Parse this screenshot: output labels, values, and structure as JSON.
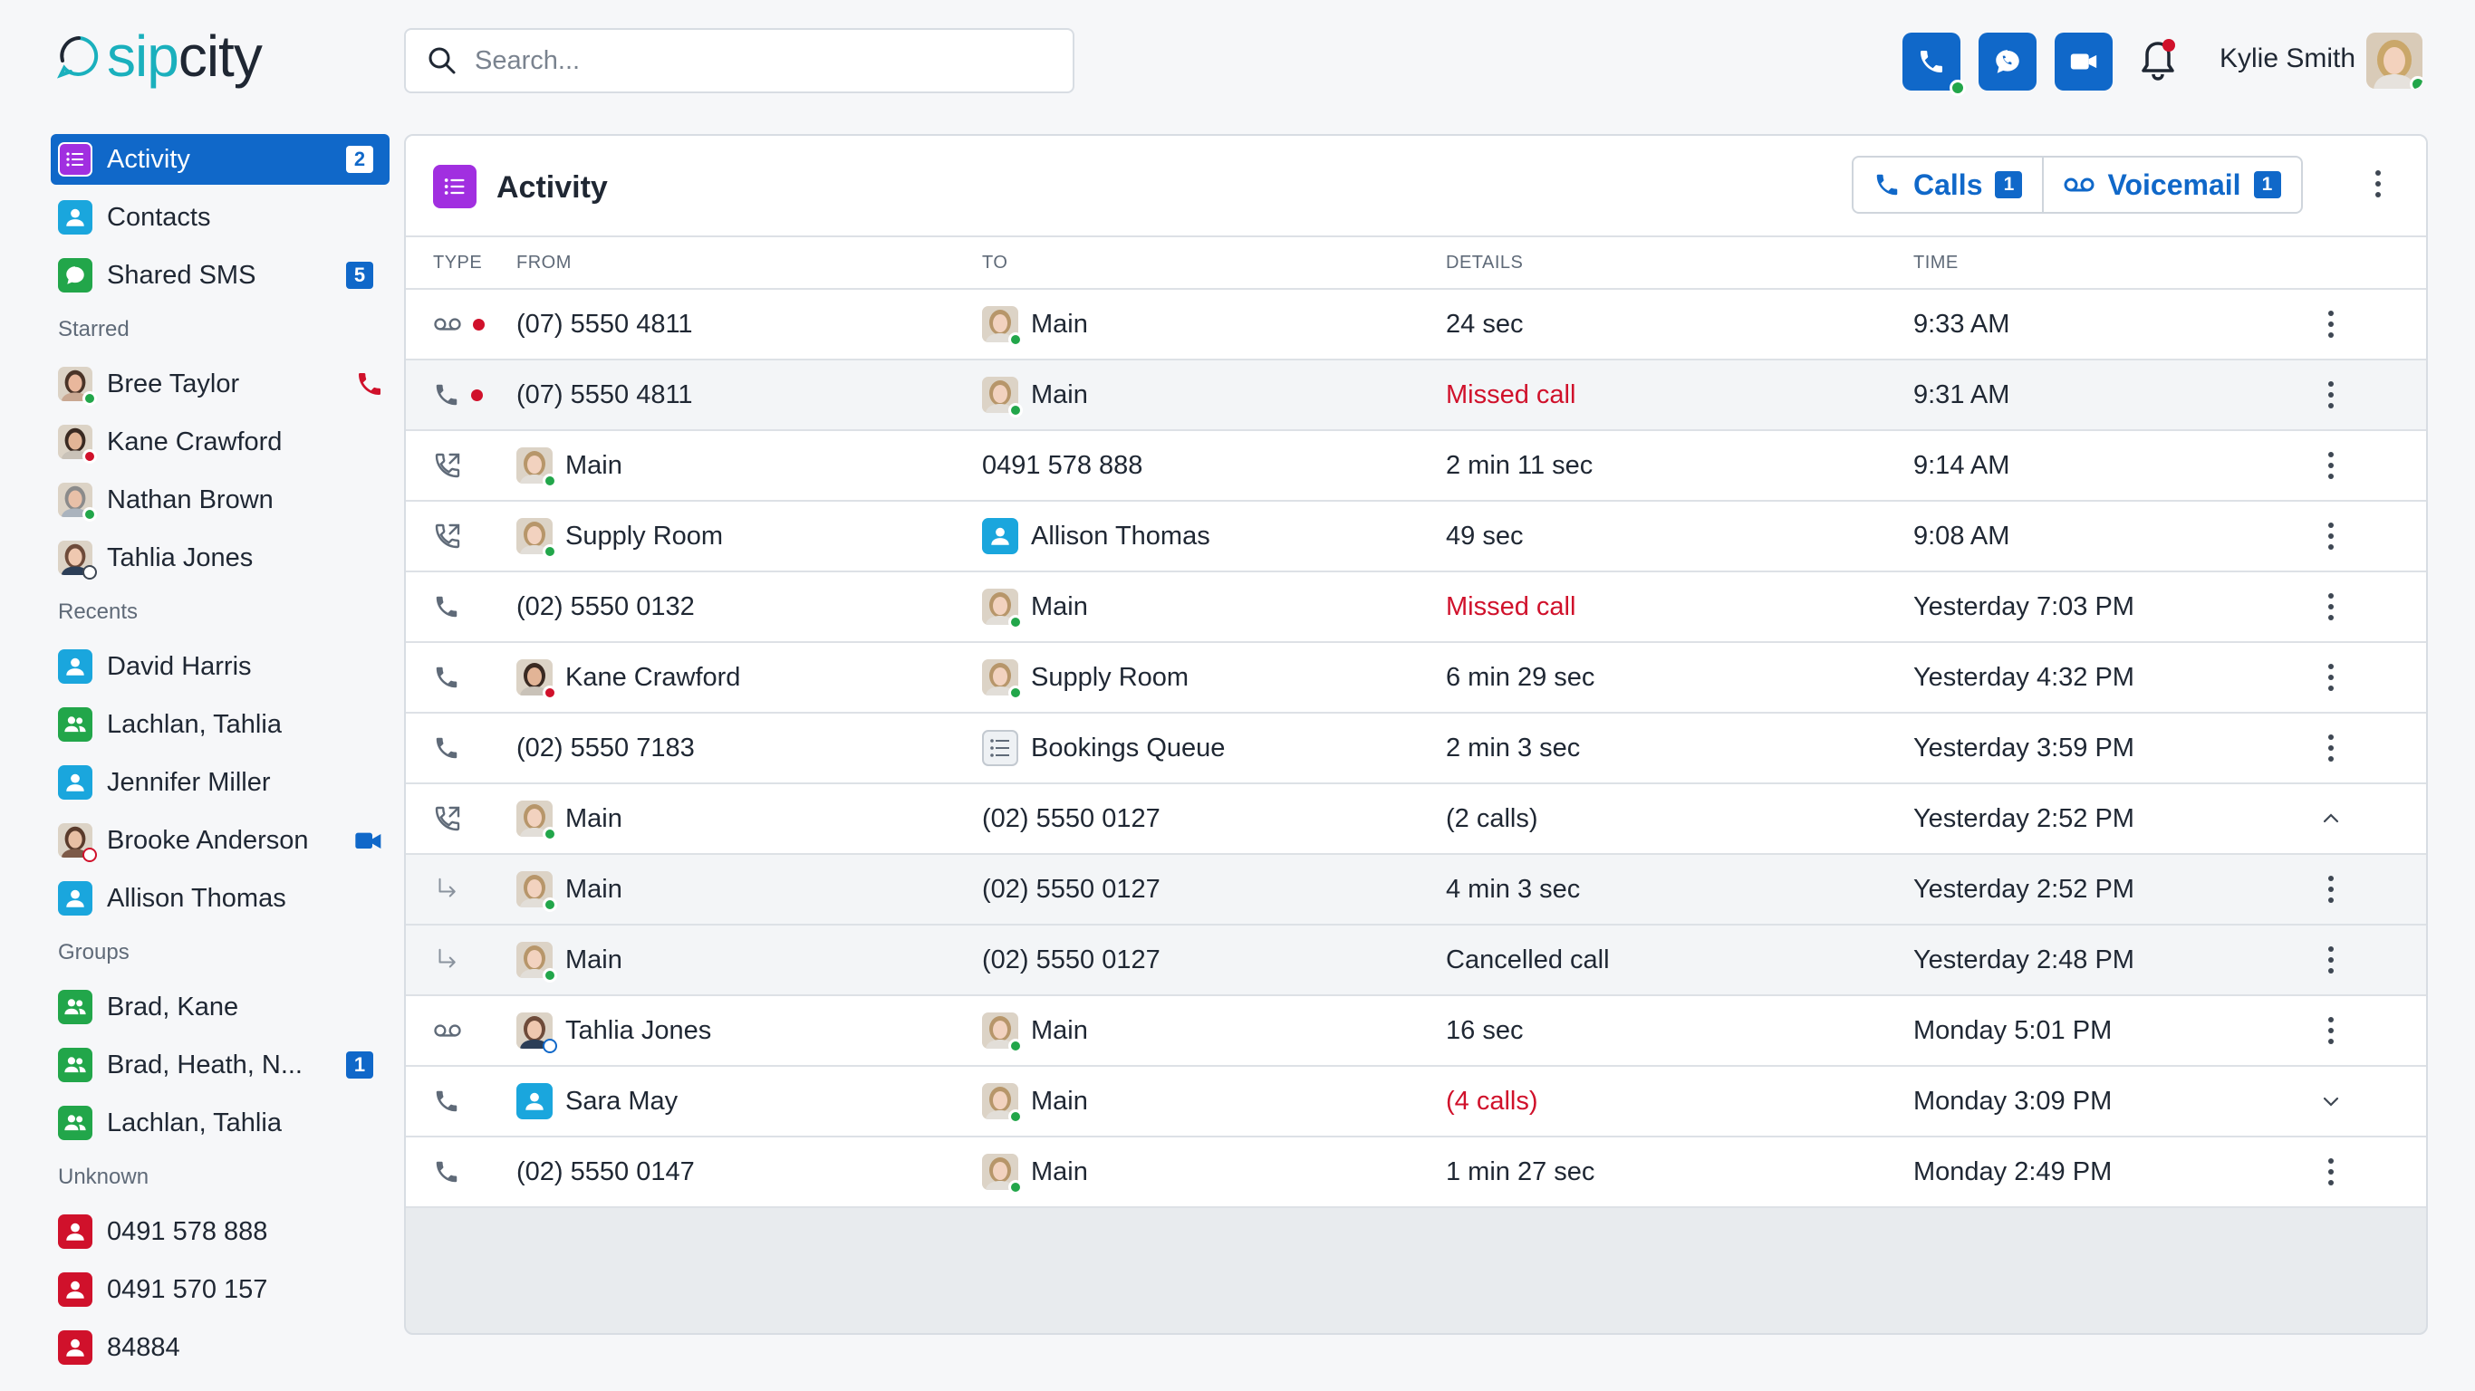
{
  "app": {
    "logo_prefix": "sip",
    "logo_suffix": "city"
  },
  "search": {
    "placeholder": "Search..."
  },
  "header": {
    "user_name": "Kylie Smith"
  },
  "sidebar": {
    "main": [
      {
        "label": "Activity",
        "badge": "2",
        "icon": "list-icon",
        "color": "#a12fe0"
      },
      {
        "label": "Contacts",
        "badge": "",
        "icon": "contact-icon",
        "color": "#1aa6dd"
      },
      {
        "label": "Shared SMS",
        "badge": "5",
        "icon": "chat-icon",
        "color": "#22a64a"
      }
    ],
    "starred_title": "Starred",
    "starred": [
      {
        "label": "Bree Taylor",
        "presence": "#22a64a"
      },
      {
        "label": "Kane Crawford",
        "presence": "#d0112b"
      },
      {
        "label": "Nathan Brown",
        "presence": "#22a64a"
      },
      {
        "label": "Tahlia Jones",
        "presence": "#ffffff"
      }
    ],
    "recents_title": "Recents",
    "recents": [
      {
        "label": "David Harris"
      },
      {
        "label": "Lachlan, Tahlia"
      },
      {
        "label": "Jennifer Miller"
      },
      {
        "label": "Brooke Anderson"
      },
      {
        "label": "Allison Thomas"
      }
    ],
    "groups_title": "Groups",
    "groups": [
      {
        "label": "Brad, Kane",
        "badge": ""
      },
      {
        "label": "Brad, Heath, N...",
        "badge": "1"
      },
      {
        "label": "Lachlan, Tahlia",
        "badge": ""
      }
    ],
    "unknown_title": "Unknown",
    "unknown": [
      {
        "label": "0491 578 888"
      },
      {
        "label": "0491 570 157"
      },
      {
        "label": "84884"
      }
    ]
  },
  "panel": {
    "title": "Activity",
    "calls_label": "Calls",
    "calls_badge": "1",
    "voicemail_label": "Voicemail",
    "voicemail_badge": "1"
  },
  "table": {
    "headers": {
      "type": "TYPE",
      "from": "FROM",
      "to": "TO",
      "details": "DETAILS",
      "time": "TIME"
    },
    "rows": [
      {
        "type": "voicemail",
        "unread": true,
        "from": "(07) 5550 4811",
        "from_icon": "none",
        "to": "Main",
        "to_icon": "avatar",
        "details": "24 sec",
        "details_red": false,
        "time": "9:33 AM",
        "action": "kebab",
        "shade": false
      },
      {
        "type": "phone",
        "unread": true,
        "from": "(07) 5550 4811",
        "from_icon": "none",
        "to": "Main",
        "to_icon": "avatar",
        "details": "Missed call",
        "details_red": true,
        "time": "9:31 AM",
        "action": "kebab",
        "shade": true
      },
      {
        "type": "outgoing",
        "unread": false,
        "from": "Main",
        "from_icon": "avatar",
        "to": "0491 578 888",
        "to_icon": "none",
        "details": "2 min 11 sec",
        "details_red": false,
        "time": "9:14 AM",
        "action": "kebab",
        "shade": false
      },
      {
        "type": "outgoing",
        "unread": false,
        "from": "Supply Room",
        "from_icon": "avatar",
        "to": "Allison Thomas",
        "to_icon": "contact",
        "details": "49 sec",
        "details_red": false,
        "time": "9:08 AM",
        "action": "kebab",
        "shade": false
      },
      {
        "type": "phone",
        "unread": false,
        "from": "(02) 5550 0132",
        "from_icon": "none",
        "to": "Main",
        "to_icon": "avatar",
        "details": "Missed call",
        "details_red": true,
        "time": "Yesterday 7:03 PM",
        "action": "kebab",
        "shade": false
      },
      {
        "type": "phone",
        "unread": false,
        "from": "Kane Crawford",
        "from_icon": "avatar-man",
        "to": "Supply Room",
        "to_icon": "avatar",
        "details": "6 min 29 sec",
        "details_red": false,
        "time": "Yesterday 4:32 PM",
        "action": "kebab",
        "shade": false
      },
      {
        "type": "phone",
        "unread": false,
        "from": "(02) 5550 7183",
        "from_icon": "none",
        "to": "Bookings Queue",
        "to_icon": "queue",
        "details": "2 min 3 sec",
        "details_red": false,
        "time": "Yesterday 3:59 PM",
        "action": "kebab",
        "shade": false
      },
      {
        "type": "outgoing",
        "unread": false,
        "from": "Main",
        "from_icon": "avatar",
        "to": "(02) 5550 0127",
        "to_icon": "none",
        "details": "(2 calls)",
        "details_red": false,
        "time": "Yesterday 2:52 PM",
        "action": "collapse",
        "shade": false
      },
      {
        "type": "sub",
        "unread": false,
        "from": "Main",
        "from_icon": "avatar",
        "to": "(02) 5550 0127",
        "to_icon": "none",
        "details": "4 min 3 sec",
        "details_red": false,
        "time": "Yesterday 2:52 PM",
        "action": "kebab",
        "shade": true
      },
      {
        "type": "sub",
        "unread": false,
        "from": "Main",
        "from_icon": "avatar",
        "to": "(02) 5550 0127",
        "to_icon": "none",
        "details": "Cancelled call",
        "details_red": false,
        "time": "Yesterday 2:48 PM",
        "action": "kebab",
        "shade": true
      },
      {
        "type": "voicemail",
        "unread": false,
        "from": "Tahlia Jones",
        "from_icon": "avatar-tahlia",
        "to": "Main",
        "to_icon": "avatar",
        "details": "16 sec",
        "details_red": false,
        "time": "Monday 5:01 PM",
        "action": "kebab",
        "shade": false
      },
      {
        "type": "phone",
        "unread": false,
        "from": "Sara May",
        "from_icon": "contact",
        "to": "Main",
        "to_icon": "avatar",
        "details": "(4 calls)",
        "details_red": true,
        "time": "Monday 3:09 PM",
        "action": "expand",
        "shade": false
      },
      {
        "type": "phone",
        "unread": false,
        "from": "(02) 5550 0147",
        "from_icon": "none",
        "to": "Main",
        "to_icon": "avatar",
        "details": "1 min 27 sec",
        "details_red": false,
        "time": "Monday 2:49 PM",
        "action": "kebab",
        "shade": false
      }
    ]
  },
  "colors": {
    "accent": "#1068c9",
    "missed": "#d0112b",
    "online": "#22a64a"
  }
}
